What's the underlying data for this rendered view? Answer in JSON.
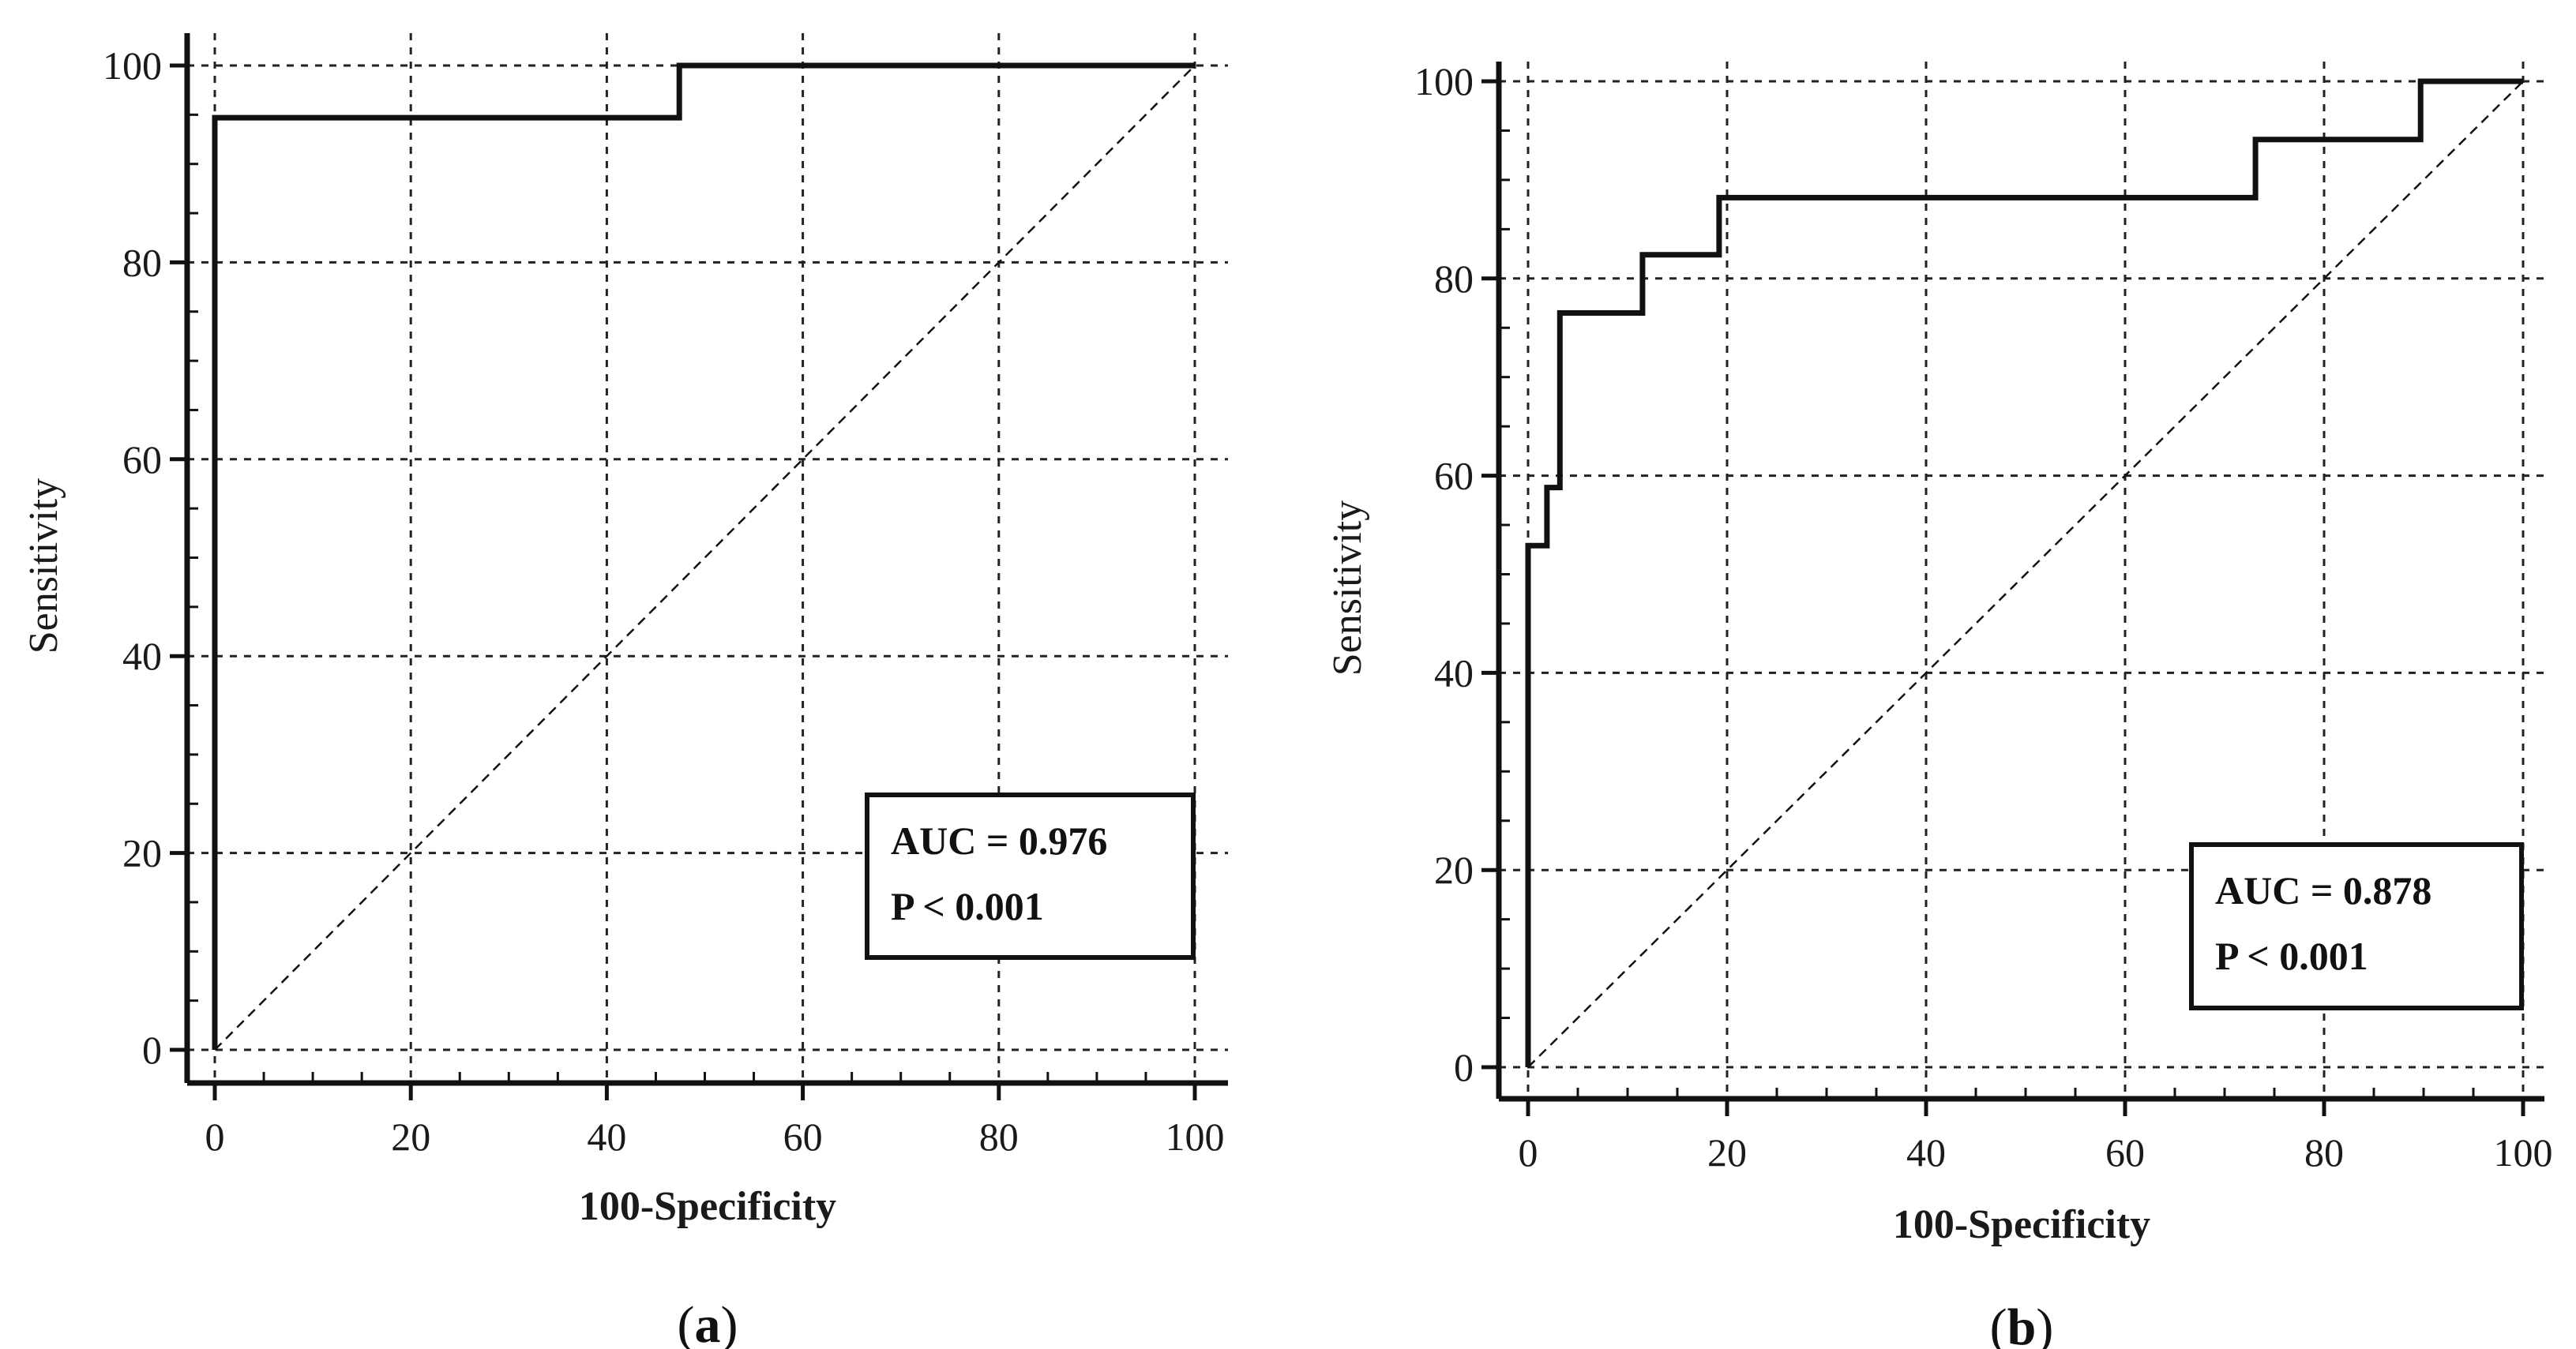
{
  "chart_data": [
    {
      "type": "line",
      "panel_label": "(a)",
      "caption": {
        "open": "(",
        "letter": "a",
        "close": ")"
      },
      "title": "",
      "xlabel": "100-Specificity",
      "ylabel": "Sensitivity",
      "xlim": [
        0,
        100
      ],
      "ylim": [
        0,
        100
      ],
      "xticks": [
        0,
        20,
        40,
        60,
        80,
        100
      ],
      "yticks": [
        0,
        20,
        40,
        60,
        80,
        100
      ],
      "grid": true,
      "legend_position": "bottom-right",
      "legend_lines": [
        "AUC = 0.976",
        "P < 0.001"
      ],
      "series": [
        {
          "name": "ROC curve",
          "style": "solid",
          "x": [
            0,
            0,
            47.4,
            47.4,
            100
          ],
          "y": [
            0,
            94.7,
            94.7,
            100,
            100
          ]
        },
        {
          "name": "Reference line",
          "style": "dashed",
          "x": [
            0,
            100
          ],
          "y": [
            0,
            100
          ]
        }
      ]
    },
    {
      "type": "line",
      "panel_label": "(b)",
      "caption": {
        "open": "(",
        "letter": "b",
        "close": ")"
      },
      "title": "",
      "xlabel": "100-Specificity",
      "ylabel": "Sensitivity",
      "xlim": [
        0,
        100
      ],
      "ylim": [
        0,
        100
      ],
      "xticks": [
        0,
        20,
        40,
        60,
        80,
        100
      ],
      "yticks": [
        0,
        20,
        40,
        60,
        80,
        100
      ],
      "grid": true,
      "legend_position": "bottom-right",
      "legend_lines": [
        "AUC = 0.878",
        "P < 0.001"
      ],
      "series": [
        {
          "name": "ROC curve",
          "style": "solid",
          "x": [
            0,
            0,
            1.9,
            1.9,
            3.2,
            3.2,
            11.5,
            11.5,
            19.2,
            19.2,
            73.1,
            73.1,
            89.7,
            89.7,
            100
          ],
          "y": [
            0,
            52.9,
            52.9,
            58.8,
            58.8,
            76.5,
            76.5,
            82.4,
            82.4,
            88.2,
            88.2,
            94.1,
            94.1,
            100,
            100
          ]
        },
        {
          "name": "Reference line",
          "style": "dashed",
          "x": [
            0,
            100
          ],
          "y": [
            0,
            100
          ]
        }
      ]
    }
  ]
}
